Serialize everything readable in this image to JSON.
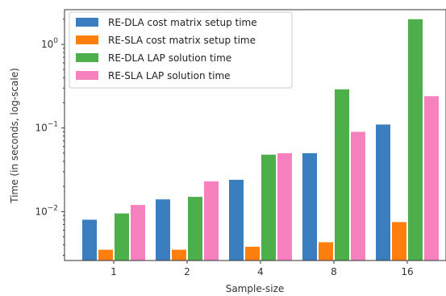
{
  "chart_data": {
    "type": "bar",
    "xlabel": "Sample-size",
    "ylabel": "Time (in seconds, log-scale)",
    "yscale": "log",
    "ylim": [
      0.0026,
      2.6
    ],
    "categories": [
      "1",
      "2",
      "4",
      "8",
      "16"
    ],
    "series": [
      {
        "name": "RE-DLA cost matrix setup time",
        "color": "#3a7ebf",
        "values": [
          0.008,
          0.014,
          0.024,
          0.05,
          0.11
        ]
      },
      {
        "name": "RE-SLA cost matrix setup time",
        "color": "#ff7f0e",
        "values": [
          0.0035,
          0.0035,
          0.0038,
          0.0043,
          0.0075
        ]
      },
      {
        "name": "RE-DLA LAP solution time",
        "color": "#4daf4a",
        "values": [
          0.0095,
          0.015,
          0.048,
          0.29,
          2.0
        ]
      },
      {
        "name": "RE-SLA LAP solution time",
        "color": "#f781bf",
        "values": [
          0.012,
          0.023,
          0.05,
          0.09,
          0.24
        ]
      }
    ],
    "yticks": [
      {
        "value": 0.01,
        "base": "10",
        "exp": "−2"
      },
      {
        "value": 0.1,
        "base": "10",
        "exp": "−1"
      },
      {
        "value": 1,
        "base": "10",
        "exp": "0"
      }
    ],
    "legend_position": "top-left",
    "grid": false
  }
}
